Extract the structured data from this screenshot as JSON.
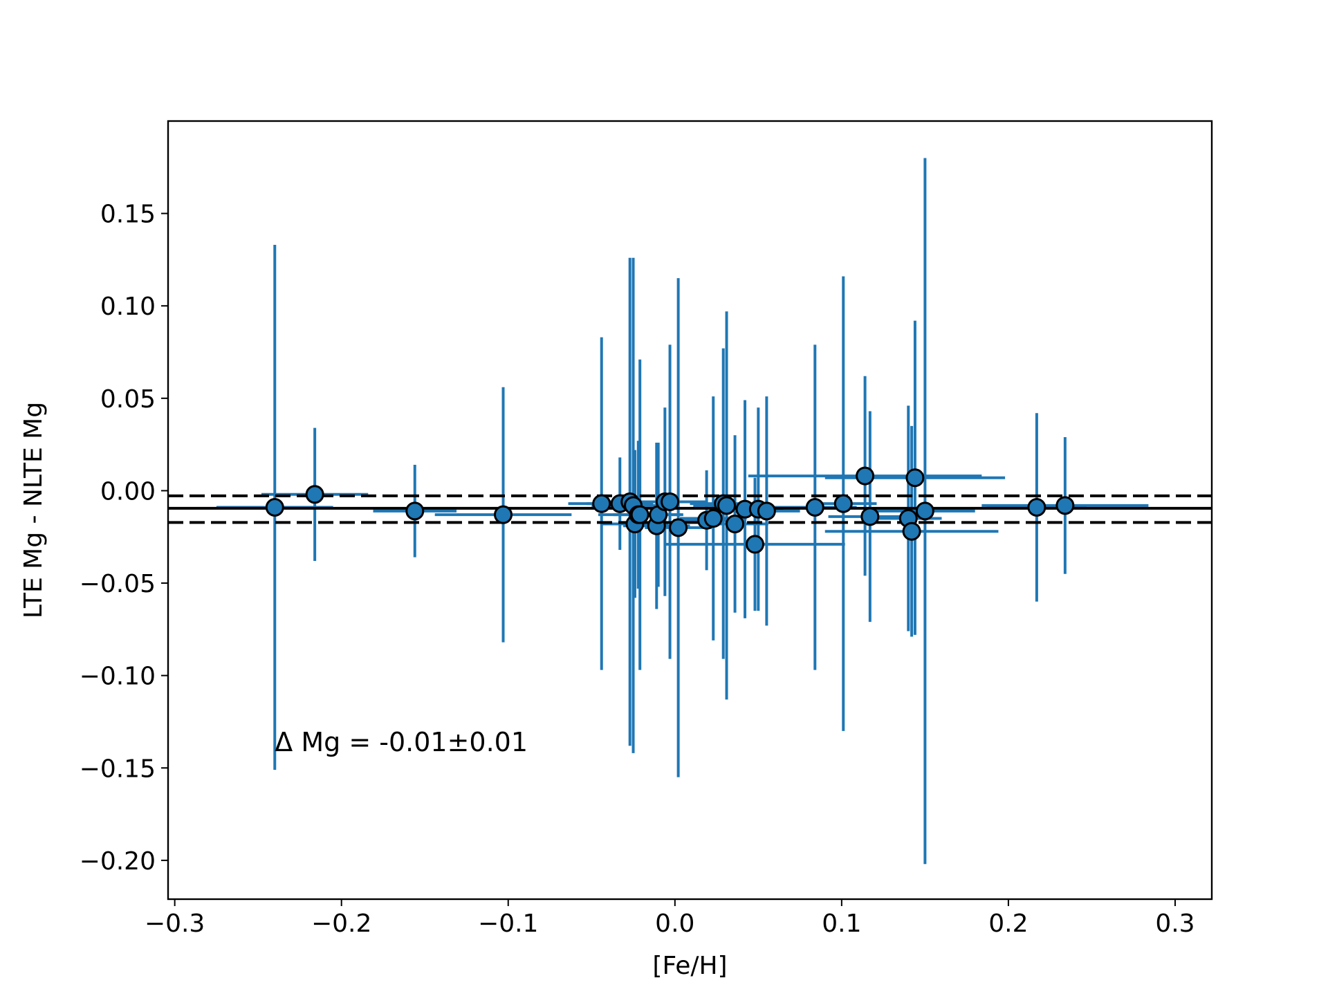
{
  "chart_data": {
    "type": "scatter",
    "title": "",
    "xlabel": "[Fe/H]",
    "ylabel": "LTE Mg - NLTE Mg",
    "xlim": [
      -0.304,
      0.322
    ],
    "ylim": [
      -0.221,
      0.2
    ],
    "xticks": [
      -0.3,
      -0.2,
      -0.1,
      0.0,
      0.1,
      0.2,
      0.3
    ],
    "xtick_labels": [
      "−0.3",
      "−0.2",
      "−0.1",
      "0.0",
      "0.1",
      "0.2",
      "0.3"
    ],
    "yticks": [
      -0.2,
      -0.15,
      -0.1,
      -0.05,
      0.0,
      0.05,
      0.1,
      0.15
    ],
    "ytick_labels": [
      "−0.20",
      "−0.15",
      "−0.10",
      "−0.05",
      "0.00",
      "0.05",
      "0.10",
      "0.15"
    ],
    "grid": false,
    "annotation": {
      "text": "Δ Mg = -0.01±0.01",
      "x": -0.24,
      "y": -0.141
    },
    "mean_line": -0.0095,
    "band_lines": [
      -0.0028,
      -0.0172
    ],
    "colors": {
      "points": "#1f77b4",
      "errorbars": "#1f77b4",
      "lines": "#000000"
    },
    "points": [
      {
        "x": -0.24,
        "y": -0.009,
        "xerr": 0.035,
        "yerr": 0.142
      },
      {
        "x": -0.216,
        "y": -0.002,
        "xerr": 0.032,
        "yerr": 0.036
      },
      {
        "x": -0.156,
        "y": -0.011,
        "xerr": 0.025,
        "yerr": 0.025
      },
      {
        "x": -0.103,
        "y": -0.013,
        "xerr": 0.041,
        "yerr": 0.069
      },
      {
        "x": -0.044,
        "y": -0.007,
        "xerr": 0.02,
        "yerr": 0.09
      },
      {
        "x": -0.033,
        "y": -0.007,
        "xerr": 0.02,
        "yerr": 0.025
      },
      {
        "x": -0.027,
        "y": -0.006,
        "xerr": 0.02,
        "yerr": 0.132
      },
      {
        "x": -0.025,
        "y": -0.008,
        "xerr": 0.025,
        "yerr": 0.134
      },
      {
        "x": -0.024,
        "y": -0.018,
        "xerr": 0.02,
        "yerr": 0.04
      },
      {
        "x": -0.022,
        "y": -0.013,
        "xerr": 0.015,
        "yerr": 0.04
      },
      {
        "x": -0.021,
        "y": -0.013,
        "xerr": 0.025,
        "yerr": 0.084
      },
      {
        "x": -0.011,
        "y": -0.019,
        "xerr": 0.02,
        "yerr": 0.045
      },
      {
        "x": -0.01,
        "y": -0.013,
        "xerr": 0.015,
        "yerr": 0.039
      },
      {
        "x": -0.006,
        "y": -0.006,
        "xerr": 0.025,
        "yerr": 0.051
      },
      {
        "x": -0.003,
        "y": -0.006,
        "xerr": 0.02,
        "yerr": 0.085
      },
      {
        "x": 0.002,
        "y": -0.02,
        "xerr": 0.02,
        "yerr": 0.135
      },
      {
        "x": 0.019,
        "y": -0.016,
        "xerr": 0.02,
        "yerr": 0.027
      },
      {
        "x": 0.023,
        "y": -0.015,
        "xerr": 0.02,
        "yerr": 0.066
      },
      {
        "x": 0.029,
        "y": -0.007,
        "xerr": 0.02,
        "yerr": 0.084
      },
      {
        "x": 0.031,
        "y": -0.008,
        "xerr": 0.02,
        "yerr": 0.105
      },
      {
        "x": 0.036,
        "y": -0.018,
        "xerr": 0.02,
        "yerr": 0.048
      },
      {
        "x": 0.042,
        "y": -0.01,
        "xerr": 0.02,
        "yerr": 0.059
      },
      {
        "x": 0.048,
        "y": -0.029,
        "xerr": 0.054,
        "yerr": 0.036
      },
      {
        "x": 0.05,
        "y": -0.01,
        "xerr": 0.015,
        "yerr": 0.055
      },
      {
        "x": 0.055,
        "y": -0.011,
        "xerr": 0.02,
        "yerr": 0.062
      },
      {
        "x": 0.084,
        "y": -0.009,
        "xerr": 0.025,
        "yerr": 0.088
      },
      {
        "x": 0.101,
        "y": -0.007,
        "xerr": 0.02,
        "yerr": 0.123
      },
      {
        "x": 0.114,
        "y": 0.008,
        "xerr": 0.07,
        "yerr": 0.054
      },
      {
        "x": 0.117,
        "y": -0.014,
        "xerr": 0.025,
        "yerr": 0.057
      },
      {
        "x": 0.14,
        "y": -0.015,
        "xerr": 0.02,
        "yerr": 0.061
      },
      {
        "x": 0.142,
        "y": -0.022,
        "xerr": 0.052,
        "yerr": 0.057
      },
      {
        "x": 0.144,
        "y": 0.007,
        "xerr": 0.054,
        "yerr": 0.085
      },
      {
        "x": 0.15,
        "y": -0.011,
        "xerr": 0.03,
        "yerr": 0.191
      },
      {
        "x": 0.217,
        "y": -0.009,
        "xerr": 0.03,
        "yerr": 0.051
      },
      {
        "x": 0.234,
        "y": -0.008,
        "xerr": 0.05,
        "yerr": 0.037
      }
    ]
  }
}
